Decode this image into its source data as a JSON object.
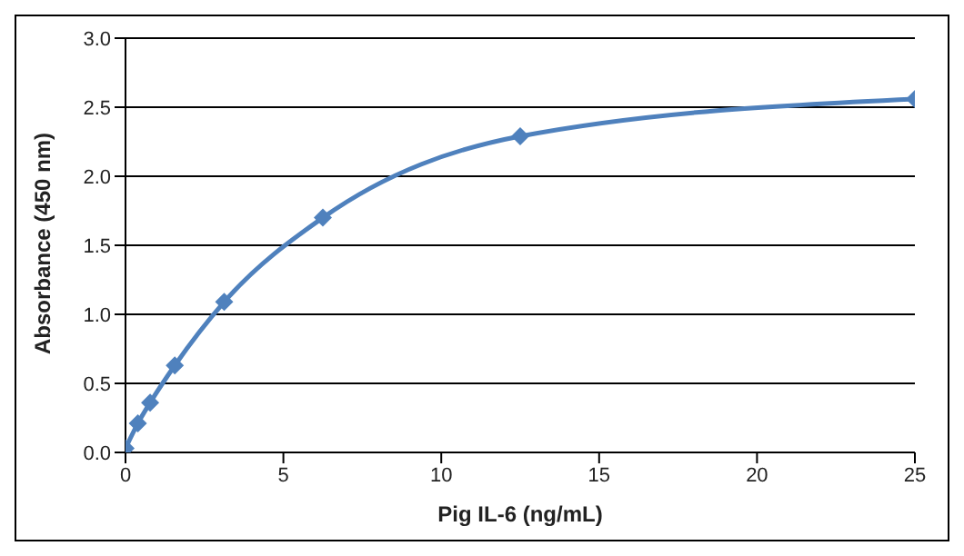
{
  "chart_data": {
    "type": "line",
    "xlabel": "Pig IL-6 (ng/mL)",
    "ylabel": "Absorbance  (450  nm)",
    "x": [
      0,
      0.39,
      0.78,
      1.56,
      3.125,
      6.25,
      12.5,
      25
    ],
    "series": [
      {
        "color": "#4f81bd",
        "values": [
          0.03,
          0.21,
          0.36,
          0.63,
          1.09,
          1.7,
          2.29,
          2.56
        ]
      }
    ],
    "xlim": [
      0,
      25
    ],
    "xticks": [
      0,
      5,
      10,
      15,
      20,
      25
    ],
    "ylim": [
      0,
      3
    ],
    "yticks": [
      {
        "value": 0,
        "label": "0.0"
      },
      0.5,
      {
        "value": 1,
        "label": "1.0"
      },
      1.5,
      {
        "value": 2,
        "label": "2.0"
      },
      2.5,
      {
        "value": 3,
        "label": "3.0"
      }
    ],
    "grid": "y",
    "marker": "diamond",
    "line_style": "solid"
  }
}
